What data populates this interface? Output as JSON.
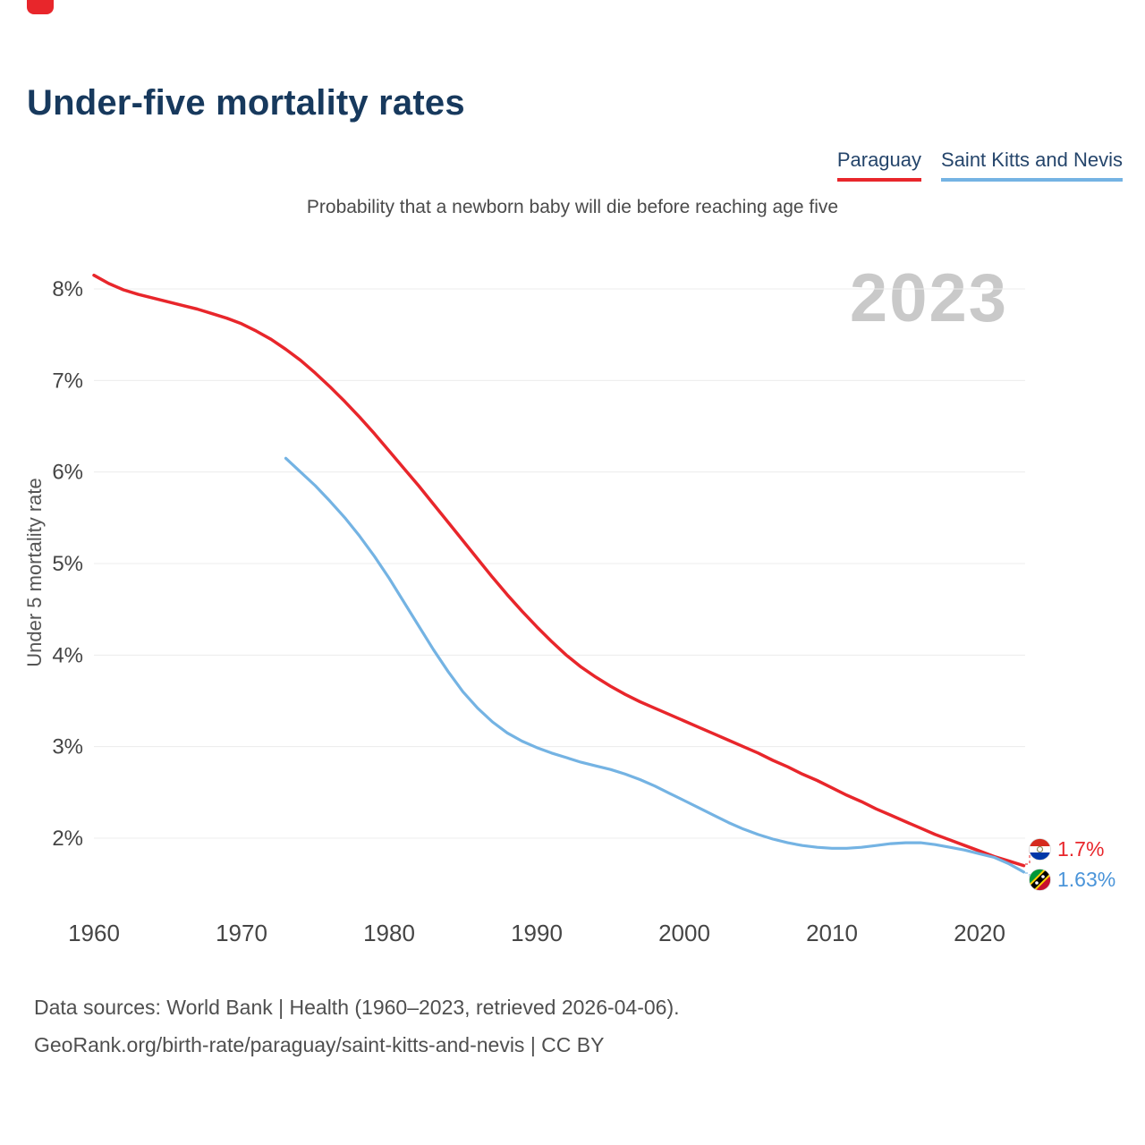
{
  "header": {
    "title": "Under-five mortality rates",
    "subtitle": "Probability that a newborn baby will die before reaching age five"
  },
  "legend": [
    {
      "label": "Paraguay",
      "color": "#e8262b"
    },
    {
      "label": "Saint Kitts and Nevis",
      "color": "#74b3e3"
    }
  ],
  "footer": {
    "line1": "Data sources: World Bank | Health (1960–2023, retrieved 2026-04-06).",
    "line2": "GeoRank.org/birth-rate/paraguay/saint-kitts-and-nevis | CC BY"
  },
  "chart_data": {
    "type": "line",
    "title": "Under-five mortality rates",
    "subtitle": "Probability that a newborn baby will die before reaching age five",
    "year_watermark": "2023",
    "xlabel": "",
    "ylabel": "Under 5 mortality rate",
    "x_range": [
      1960,
      2023
    ],
    "y_range_percent": [
      1.5,
      8.3
    ],
    "grid": "horizontal",
    "legend_position": "top-right",
    "yticks": [
      {
        "value": 8,
        "label": "8%"
      },
      {
        "value": 7,
        "label": "7%"
      },
      {
        "value": 6,
        "label": "6%"
      },
      {
        "value": 5,
        "label": "5%"
      },
      {
        "value": 4,
        "label": "4%"
      },
      {
        "value": 3,
        "label": "3%"
      },
      {
        "value": 2,
        "label": "2%"
      }
    ],
    "xticks": [
      {
        "value": 1960,
        "label": "1960"
      },
      {
        "value": 1970,
        "label": "1970"
      },
      {
        "value": 1980,
        "label": "1980"
      },
      {
        "value": 1990,
        "label": "1990"
      },
      {
        "value": 2000,
        "label": "2000"
      },
      {
        "value": 2010,
        "label": "2010"
      },
      {
        "value": 2020,
        "label": "2020"
      }
    ],
    "series": [
      {
        "name": "Paraguay",
        "color": "#e8262b",
        "width": 3.5,
        "points": [
          [
            1960,
            8.15
          ],
          [
            1961,
            8.06
          ],
          [
            1962,
            7.99
          ],
          [
            1963,
            7.94
          ],
          [
            1964,
            7.9
          ],
          [
            1965,
            7.86
          ],
          [
            1966,
            7.82
          ],
          [
            1967,
            7.78
          ],
          [
            1968,
            7.73
          ],
          [
            1969,
            7.68
          ],
          [
            1970,
            7.62
          ],
          [
            1971,
            7.54
          ],
          [
            1972,
            7.45
          ],
          [
            1973,
            7.34
          ],
          [
            1974,
            7.22
          ],
          [
            1975,
            7.08
          ],
          [
            1976,
            6.93
          ],
          [
            1977,
            6.77
          ],
          [
            1978,
            6.6
          ],
          [
            1979,
            6.42
          ],
          [
            1980,
            6.23
          ],
          [
            1981,
            6.04
          ],
          [
            1982,
            5.85
          ],
          [
            1983,
            5.65
          ],
          [
            1984,
            5.45
          ],
          [
            1985,
            5.25
          ],
          [
            1986,
            5.05
          ],
          [
            1987,
            4.85
          ],
          [
            1988,
            4.66
          ],
          [
            1989,
            4.48
          ],
          [
            1990,
            4.31
          ],
          [
            1991,
            4.15
          ],
          [
            1992,
            4.0
          ],
          [
            1993,
            3.87
          ],
          [
            1994,
            3.76
          ],
          [
            1995,
            3.66
          ],
          [
            1996,
            3.57
          ],
          [
            1997,
            3.49
          ],
          [
            1998,
            3.42
          ],
          [
            1999,
            3.35
          ],
          [
            2000,
            3.28
          ],
          [
            2001,
            3.21
          ],
          [
            2002,
            3.14
          ],
          [
            2003,
            3.07
          ],
          [
            2004,
            3.0
          ],
          [
            2005,
            2.93
          ],
          [
            2006,
            2.85
          ],
          [
            2007,
            2.78
          ],
          [
            2008,
            2.7
          ],
          [
            2009,
            2.63
          ],
          [
            2010,
            2.55
          ],
          [
            2011,
            2.47
          ],
          [
            2012,
            2.4
          ],
          [
            2013,
            2.32
          ],
          [
            2014,
            2.25
          ],
          [
            2015,
            2.18
          ],
          [
            2016,
            2.11
          ],
          [
            2017,
            2.04
          ],
          [
            2018,
            1.98
          ],
          [
            2019,
            1.92
          ],
          [
            2020,
            1.86
          ],
          [
            2021,
            1.8
          ],
          [
            2022,
            1.75
          ],
          [
            2023,
            1.7
          ]
        ]
      },
      {
        "name": "Saint Kitts and Nevis",
        "color": "#74b3e3",
        "width": 3.2,
        "points": [
          [
            1973,
            6.15
          ],
          [
            1974,
            6.0
          ],
          [
            1975,
            5.85
          ],
          [
            1976,
            5.68
          ],
          [
            1977,
            5.5
          ],
          [
            1978,
            5.3
          ],
          [
            1979,
            5.08
          ],
          [
            1980,
            4.84
          ],
          [
            1981,
            4.58
          ],
          [
            1982,
            4.32
          ],
          [
            1983,
            4.06
          ],
          [
            1984,
            3.82
          ],
          [
            1985,
            3.6
          ],
          [
            1986,
            3.42
          ],
          [
            1987,
            3.27
          ],
          [
            1988,
            3.15
          ],
          [
            1989,
            3.06
          ],
          [
            1990,
            2.99
          ],
          [
            1991,
            2.93
          ],
          [
            1992,
            2.88
          ],
          [
            1993,
            2.83
          ],
          [
            1994,
            2.79
          ],
          [
            1995,
            2.75
          ],
          [
            1996,
            2.7
          ],
          [
            1997,
            2.64
          ],
          [
            1998,
            2.57
          ],
          [
            1999,
            2.49
          ],
          [
            2000,
            2.41
          ],
          [
            2001,
            2.33
          ],
          [
            2002,
            2.25
          ],
          [
            2003,
            2.17
          ],
          [
            2004,
            2.1
          ],
          [
            2005,
            2.04
          ],
          [
            2006,
            1.99
          ],
          [
            2007,
            1.95
          ],
          [
            2008,
            1.92
          ],
          [
            2009,
            1.9
          ],
          [
            2010,
            1.89
          ],
          [
            2011,
            1.89
          ],
          [
            2012,
            1.9
          ],
          [
            2013,
            1.92
          ],
          [
            2014,
            1.94
          ],
          [
            2015,
            1.95
          ],
          [
            2016,
            1.95
          ],
          [
            2017,
            1.93
          ],
          [
            2018,
            1.9
          ],
          [
            2019,
            1.87
          ],
          [
            2020,
            1.83
          ],
          [
            2021,
            1.79
          ],
          [
            2022,
            1.72
          ],
          [
            2023,
            1.63
          ]
        ]
      }
    ],
    "end_labels": [
      {
        "series": "Paraguay",
        "value": "1.7%",
        "flag": "paraguay-flag"
      },
      {
        "series": "Saint Kitts and Nevis",
        "value": "1.63%",
        "flag": "saint-kitts-nevis-flag"
      }
    ]
  }
}
